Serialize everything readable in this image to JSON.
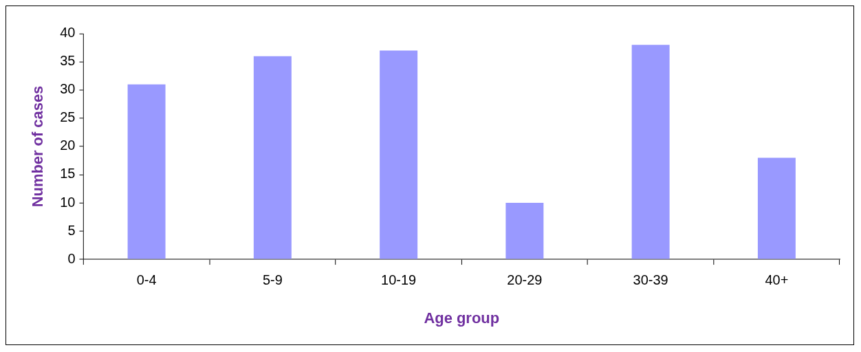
{
  "chart_data": {
    "type": "bar",
    "xlabel": "Age group",
    "ylabel": "Number of cases",
    "categories": [
      "0-4",
      "5-9",
      "10-19",
      "20-29",
      "30-39",
      "40+"
    ],
    "values": [
      31,
      36,
      37,
      10,
      38,
      18
    ],
    "color": "#9999ff",
    "ylim": [
      0,
      40
    ],
    "yticks": [
      0,
      5,
      10,
      15,
      20,
      25,
      30,
      35,
      40
    ],
    "grid": false,
    "legend": false
  }
}
